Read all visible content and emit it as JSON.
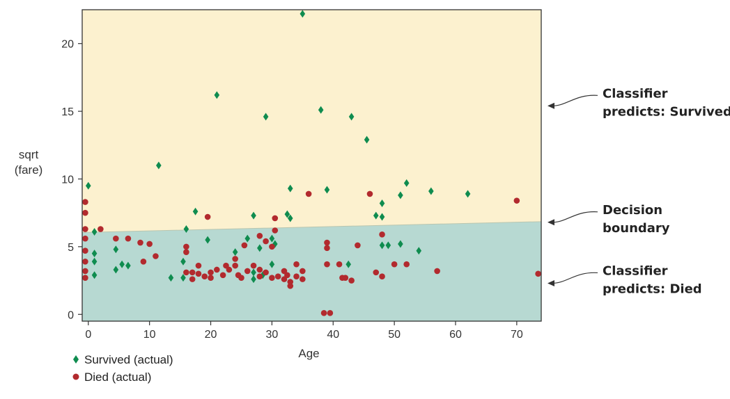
{
  "chart_data": {
    "type": "scatter",
    "title": "",
    "xlabel": "Age",
    "ylabel_lines": [
      "sqrt",
      "(fare)"
    ],
    "xlim": [
      -1,
      74
    ],
    "ylim": [
      -0.5,
      22.5
    ],
    "xticks": [
      0,
      10,
      20,
      30,
      40,
      50,
      60,
      70
    ],
    "yticks": [
      0,
      5,
      10,
      15,
      20
    ],
    "grid": false,
    "decision_boundary": {
      "x": [
        -1,
        74
      ],
      "y": [
        6.05,
        6.85
      ]
    },
    "regions": {
      "above": {
        "label": "Classifier predicts: Survived",
        "color": "#fcf1cf"
      },
      "below": {
        "label": "Classifier predicts: Died",
        "color": "#b7d9d2"
      }
    },
    "series": [
      {
        "name": "Survived (actual)",
        "marker": "diamond",
        "color": "#0f8c4f",
        "points": [
          [
            0,
            9.5
          ],
          [
            1,
            6.1
          ],
          [
            1,
            4.5
          ],
          [
            1,
            3.9
          ],
          [
            1,
            2.9
          ],
          [
            4.5,
            4.8
          ],
          [
            4.5,
            3.3
          ],
          [
            5.5,
            3.7
          ],
          [
            6.5,
            3.6
          ],
          [
            11.5,
            11
          ],
          [
            13.5,
            2.7
          ],
          [
            15.5,
            3.9
          ],
          [
            15.5,
            2.7
          ],
          [
            16,
            6.3
          ],
          [
            17.5,
            7.6
          ],
          [
            19.5,
            5.5
          ],
          [
            21,
            16.2
          ],
          [
            24,
            4.6
          ],
          [
            26,
            5.6
          ],
          [
            27,
            7.3
          ],
          [
            27,
            3.1
          ],
          [
            27,
            2.6
          ],
          [
            28,
            4.9
          ],
          [
            28.5,
            2.9
          ],
          [
            29,
            14.6
          ],
          [
            30,
            5.6
          ],
          [
            30,
            3.7
          ],
          [
            30.5,
            5.2
          ],
          [
            32.5,
            7.4
          ],
          [
            33,
            7.1
          ],
          [
            33,
            9.3
          ],
          [
            35,
            22.2
          ],
          [
            38,
            15.1
          ],
          [
            39,
            9.2
          ],
          [
            42.5,
            3.7
          ],
          [
            43,
            14.6
          ],
          [
            45.5,
            12.9
          ],
          [
            47,
            7.3
          ],
          [
            48,
            8.2
          ],
          [
            48,
            7.2
          ],
          [
            48,
            5.1
          ],
          [
            49,
            5.1
          ],
          [
            51,
            8.8
          ],
          [
            51,
            5.2
          ],
          [
            52,
            9.7
          ],
          [
            54,
            4.7
          ],
          [
            56,
            9.1
          ],
          [
            62,
            8.9
          ]
        ]
      },
      {
        "name": "Died (actual)",
        "marker": "circle",
        "color": "#b22a2e",
        "points": [
          [
            -0.5,
            8.3
          ],
          [
            -0.5,
            7.5
          ],
          [
            -0.5,
            6.3
          ],
          [
            -0.5,
            5.6
          ],
          [
            -0.5,
            4.7
          ],
          [
            -0.5,
            3.9
          ],
          [
            -0.5,
            3.2
          ],
          [
            -0.5,
            2.7
          ],
          [
            2,
            6.3
          ],
          [
            4.5,
            5.6
          ],
          [
            6.5,
            5.6
          ],
          [
            8.5,
            5.3
          ],
          [
            9,
            3.9
          ],
          [
            10,
            5.2
          ],
          [
            11,
            4.3
          ],
          [
            16,
            5
          ],
          [
            16,
            4.6
          ],
          [
            16,
            3.1
          ],
          [
            17,
            3.1
          ],
          [
            17,
            2.6
          ],
          [
            18,
            3.6
          ],
          [
            18,
            3
          ],
          [
            19,
            2.8
          ],
          [
            19.5,
            7.2
          ],
          [
            20,
            3.1
          ],
          [
            20,
            2.7
          ],
          [
            21,
            3.3
          ],
          [
            22,
            2.9
          ],
          [
            22.5,
            3.6
          ],
          [
            23,
            3.3
          ],
          [
            24,
            4.1
          ],
          [
            24,
            3.6
          ],
          [
            24.5,
            2.9
          ],
          [
            25,
            2.7
          ],
          [
            25.5,
            5.1
          ],
          [
            26,
            3.2
          ],
          [
            27,
            3.6
          ],
          [
            28,
            5.8
          ],
          [
            28,
            3.3
          ],
          [
            28,
            2.8
          ],
          [
            29,
            5.4
          ],
          [
            29,
            3.1
          ],
          [
            30,
            5
          ],
          [
            30,
            2.7
          ],
          [
            30.5,
            7.1
          ],
          [
            30.5,
            6.2
          ],
          [
            31,
            2.8
          ],
          [
            32,
            3.2
          ],
          [
            32,
            2.6
          ],
          [
            32.5,
            2.9
          ],
          [
            33,
            2.4
          ],
          [
            33,
            2.1
          ],
          [
            34,
            3.7
          ],
          [
            34,
            2.8
          ],
          [
            35,
            3.2
          ],
          [
            35,
            2.6
          ],
          [
            36,
            8.9
          ],
          [
            38.5,
            0.1
          ],
          [
            39,
            5.3
          ],
          [
            39,
            4.9
          ],
          [
            39,
            3.7
          ],
          [
            39.5,
            0.1
          ],
          [
            41,
            3.7
          ],
          [
            41.5,
            2.7
          ],
          [
            42,
            2.7
          ],
          [
            43,
            2.5
          ],
          [
            44,
            5.1
          ],
          [
            46,
            8.9
          ],
          [
            47,
            3.1
          ],
          [
            48,
            5.9
          ],
          [
            48,
            2.8
          ],
          [
            50,
            3.7
          ],
          [
            52,
            3.7
          ],
          [
            57,
            3.2
          ],
          [
            70,
            8.4
          ],
          [
            73.5,
            3
          ]
        ]
      }
    ],
    "annotations": [
      {
        "lines": [
          "Classifier",
          "predicts: Survived"
        ],
        "target_y": 15.4
      },
      {
        "lines": [
          "Decision",
          "boundary"
        ],
        "target_y": 6.8
      },
      {
        "lines": [
          "Classifier",
          "predicts: Died"
        ],
        "target_y": 2.3
      }
    ]
  }
}
